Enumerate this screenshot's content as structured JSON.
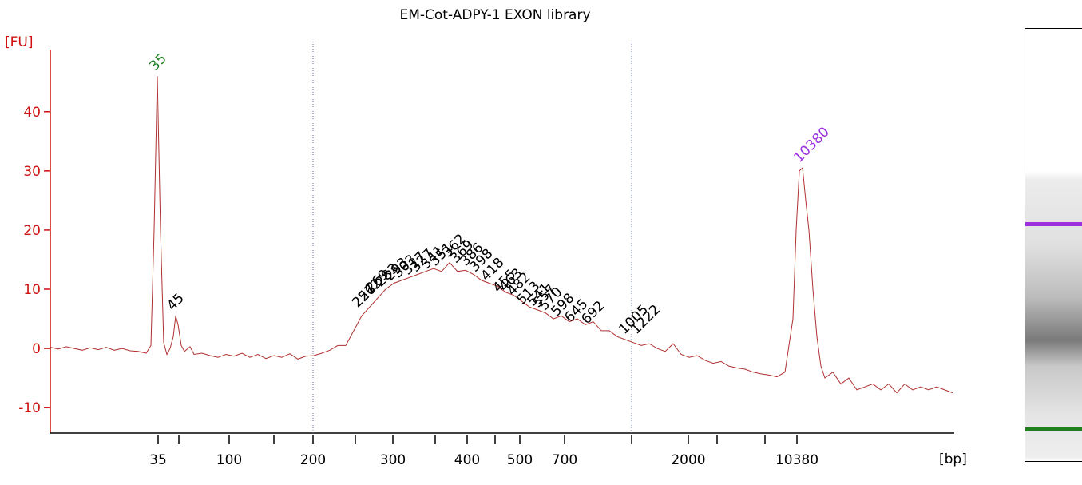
{
  "chart_data": {
    "type": "line",
    "title": "EM-Cot-ADPY-1 EXON library",
    "y_label": "[FU]",
    "x_label": "[bp]",
    "color": "#b03030",
    "axis_color": "#d01010",
    "xlim": [
      0,
      113.2
    ],
    "ylim": [
      -14.3,
      50.5
    ],
    "yticks": [
      -10,
      0,
      10,
      20,
      30,
      40
    ],
    "xticks": [
      {
        "value": 13.5,
        "label": "35"
      },
      {
        "value": 22.4,
        "label": "100"
      },
      {
        "value": 32.9,
        "label": "200"
      },
      {
        "value": 42.9,
        "label": "300"
      },
      {
        "value": 52.2,
        "label": "400"
      },
      {
        "value": 58.8,
        "label": "500"
      },
      {
        "value": 64.4,
        "label": "700"
      },
      {
        "value": 79.9,
        "label": "2000"
      },
      {
        "value": 93.5,
        "label": "10380"
      }
    ],
    "xminorticks": [
      16.1,
      28,
      38.2,
      48.2,
      55.7,
      72.8,
      83.5,
      89.5
    ],
    "markers_x": [
      32.9,
      72.8
    ],
    "x": [
      0,
      1,
      2,
      3,
      4,
      5,
      6,
      7,
      8,
      9,
      10,
      11,
      12,
      12.6,
      13.0,
      13.4,
      13.8,
      14.2,
      14.6,
      15.0,
      15.4,
      15.7,
      16.0,
      16.4,
      16.8,
      17.5,
      18,
      19,
      20,
      21,
      22,
      23,
      24,
      25,
      26,
      27,
      28,
      29,
      30,
      31,
      32,
      33,
      34,
      35,
      36,
      37,
      38,
      39,
      40,
      41,
      42,
      43,
      44,
      45,
      46,
      47,
      48,
      49,
      50,
      51,
      52,
      53,
      54,
      55,
      56,
      57,
      58,
      59,
      60,
      61,
      62,
      63,
      64,
      65,
      66,
      67,
      68,
      69,
      70,
      71,
      72,
      73,
      74,
      75,
      76,
      77,
      78,
      79,
      80,
      81,
      82,
      83,
      84,
      85,
      86,
      87,
      88,
      89,
      90,
      91,
      92,
      93,
      93.4,
      93.8,
      94.2,
      94.6,
      95,
      95.5,
      96,
      96.5,
      97,
      98,
      99,
      100,
      101,
      102,
      103,
      104,
      105,
      106,
      107,
      108,
      109,
      110,
      111,
      112,
      113
    ],
    "values": [
      0.2,
      -0.1,
      0.3,
      0,
      -0.3,
      0.1,
      -0.2,
      0.2,
      -0.3,
      0,
      -0.4,
      -0.5,
      -0.8,
      0.5,
      20,
      46,
      20,
      1,
      -1,
      0,
      2,
      5.5,
      4,
      0.5,
      -0.5,
      0.3,
      -1,
      -0.8,
      -1.2,
      -1.5,
      -1,
      -1.3,
      -0.8,
      -1.5,
      -1,
      -1.7,
      -1.2,
      -1.5,
      -0.9,
      -1.8,
      -1.3,
      -1.2,
      -0.8,
      -0.3,
      0.5,
      0.5,
      3,
      5.5,
      7,
      8.5,
      10,
      11,
      11.5,
      12,
      12.5,
      13,
      13.5,
      13,
      14.5,
      13,
      13.2,
      12.5,
      11.5,
      11,
      10.5,
      9.5,
      9,
      8,
      7,
      6.5,
      6,
      5,
      5.5,
      4.5,
      5,
      4,
      4.5,
      3,
      3,
      2,
      1.5,
      1,
      0.5,
      0.8,
      0,
      -0.5,
      0.8,
      -1,
      -1.5,
      -1.2,
      -2,
      -2.5,
      -2.2,
      -3,
      -3.3,
      -3.5,
      -4,
      -4.3,
      -4.5,
      -4.8,
      -4,
      5,
      20,
      30,
      30.5,
      25,
      20,
      10,
      2,
      -3,
      -5,
      -4,
      -6,
      -5,
      -7,
      -6.5,
      -6,
      -7,
      -6,
      -7.5,
      -6,
      -7,
      -6.5,
      -7,
      -6.5,
      -7,
      -7.5
    ],
    "peaks": [
      {
        "label": "35",
        "x": 13.5,
        "y": 46,
        "color": "#208020"
      },
      {
        "label": "45",
        "x": 15.7,
        "y": 5.5
      },
      {
        "label": "257",
        "x": 38.9,
        "y": 6
      },
      {
        "label": "262",
        "x": 39.7,
        "y": 7
      },
      {
        "label": "269",
        "x": 40.6,
        "y": 8.5
      },
      {
        "label": "283",
        "x": 41.8,
        "y": 9.5
      },
      {
        "label": "293",
        "x": 43,
        "y": 10.5
      },
      {
        "label": "303",
        "x": 44,
        "y": 11
      },
      {
        "label": "317",
        "x": 45.2,
        "y": 11.5
      },
      {
        "label": "327",
        "x": 46.2,
        "y": 12
      },
      {
        "label": "341",
        "x": 47.5,
        "y": 12.5
      },
      {
        "label": "351",
        "x": 48.6,
        "y": 13
      },
      {
        "label": "362",
        "x": 50.2,
        "y": 14.5
      },
      {
        "label": "369",
        "x": 51.2,
        "y": 13.5
      },
      {
        "label": "386",
        "x": 52.4,
        "y": 13
      },
      {
        "label": "398",
        "x": 53.6,
        "y": 12
      },
      {
        "label": "418",
        "x": 55,
        "y": 10.5
      },
      {
        "label": "455",
        "x": 56.5,
        "y": 8.5
      },
      {
        "label": "463",
        "x": 57.3,
        "y": 8.7
      },
      {
        "label": "482",
        "x": 58.3,
        "y": 8
      },
      {
        "label": "513",
        "x": 59.5,
        "y": 6.5
      },
      {
        "label": "541",
        "x": 60.8,
        "y": 6.2
      },
      {
        "label": "557",
        "x": 61.5,
        "y": 6
      },
      {
        "label": "570",
        "x": 62.3,
        "y": 5.5
      },
      {
        "label": "598",
        "x": 63.8,
        "y": 4.5
      },
      {
        "label": "645",
        "x": 65.5,
        "y": 3.5
      },
      {
        "label": "692",
        "x": 67.6,
        "y": 3.2
      },
      {
        "label": "1005",
        "x": 72.3,
        "y": 1.5
      },
      {
        "label": "1222",
        "x": 73.8,
        "y": 1.5
      },
      {
        "label": "10380",
        "x": 94.2,
        "y": 30.5,
        "color": "#9b30e0"
      }
    ]
  }
}
